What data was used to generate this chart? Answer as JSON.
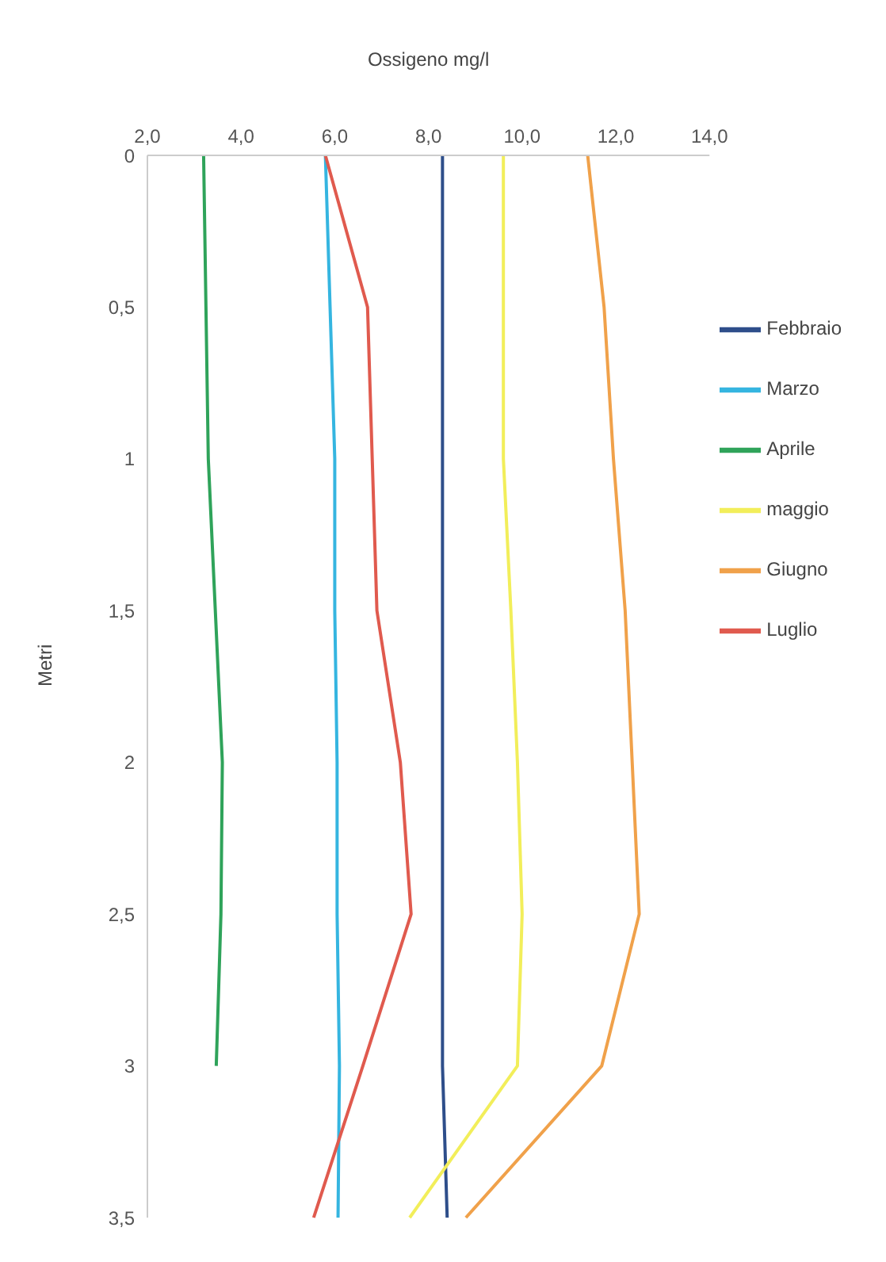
{
  "chart_data": {
    "type": "line",
    "orientation": "horizontal",
    "xlabel": "Ossigeno mg/l",
    "ylabel": "Metri",
    "categories": [
      "0",
      "0,5",
      "1",
      "1,5",
      "2",
      "2,5",
      "3",
      "3,5"
    ],
    "series": [
      {
        "name": "Febbraio",
        "color": "#2e4e8a",
        "values": [
          8.3,
          8.3,
          8.3,
          8.3,
          8.3,
          8.3,
          8.3,
          8.4
        ]
      },
      {
        "name": "Marzo",
        "color": "#35b5e0",
        "values": [
          5.8,
          5.9,
          6.0,
          6.0,
          6.05,
          6.05,
          6.1,
          6.07
        ]
      },
      {
        "name": "Aprile",
        "color": "#2fa35a",
        "values": [
          3.2,
          3.25,
          3.3,
          3.45,
          3.6,
          3.57,
          3.47,
          null
        ]
      },
      {
        "name": "maggio",
        "color": "#f2ee5a",
        "values": [
          9.6,
          9.6,
          9.6,
          9.76,
          9.9,
          10.0,
          9.9,
          7.6
        ]
      },
      {
        "name": "Giugno",
        "color": "#f0a14a",
        "values": [
          11.4,
          11.75,
          11.95,
          12.2,
          12.35,
          12.5,
          11.7,
          8.8
        ]
      },
      {
        "name": "Luglio",
        "color": "#e05a4e",
        "values": [
          5.8,
          6.7,
          6.8,
          6.9,
          7.4,
          7.63,
          6.6,
          5.55
        ]
      }
    ],
    "xlim": [
      2,
      14
    ],
    "xticks": [
      {
        "value": 2,
        "label": "2,0"
      },
      {
        "value": 4,
        "label": "4,0"
      },
      {
        "value": 6,
        "label": "6,0"
      },
      {
        "value": 8,
        "label": "8,0"
      },
      {
        "value": 10,
        "label": "10,0"
      },
      {
        "value": 12,
        "label": "12,0"
      },
      {
        "value": 14,
        "label": "14,0"
      }
    ],
    "grid": false,
    "legend": "right",
    "marker": "none",
    "line_style": "solid"
  }
}
